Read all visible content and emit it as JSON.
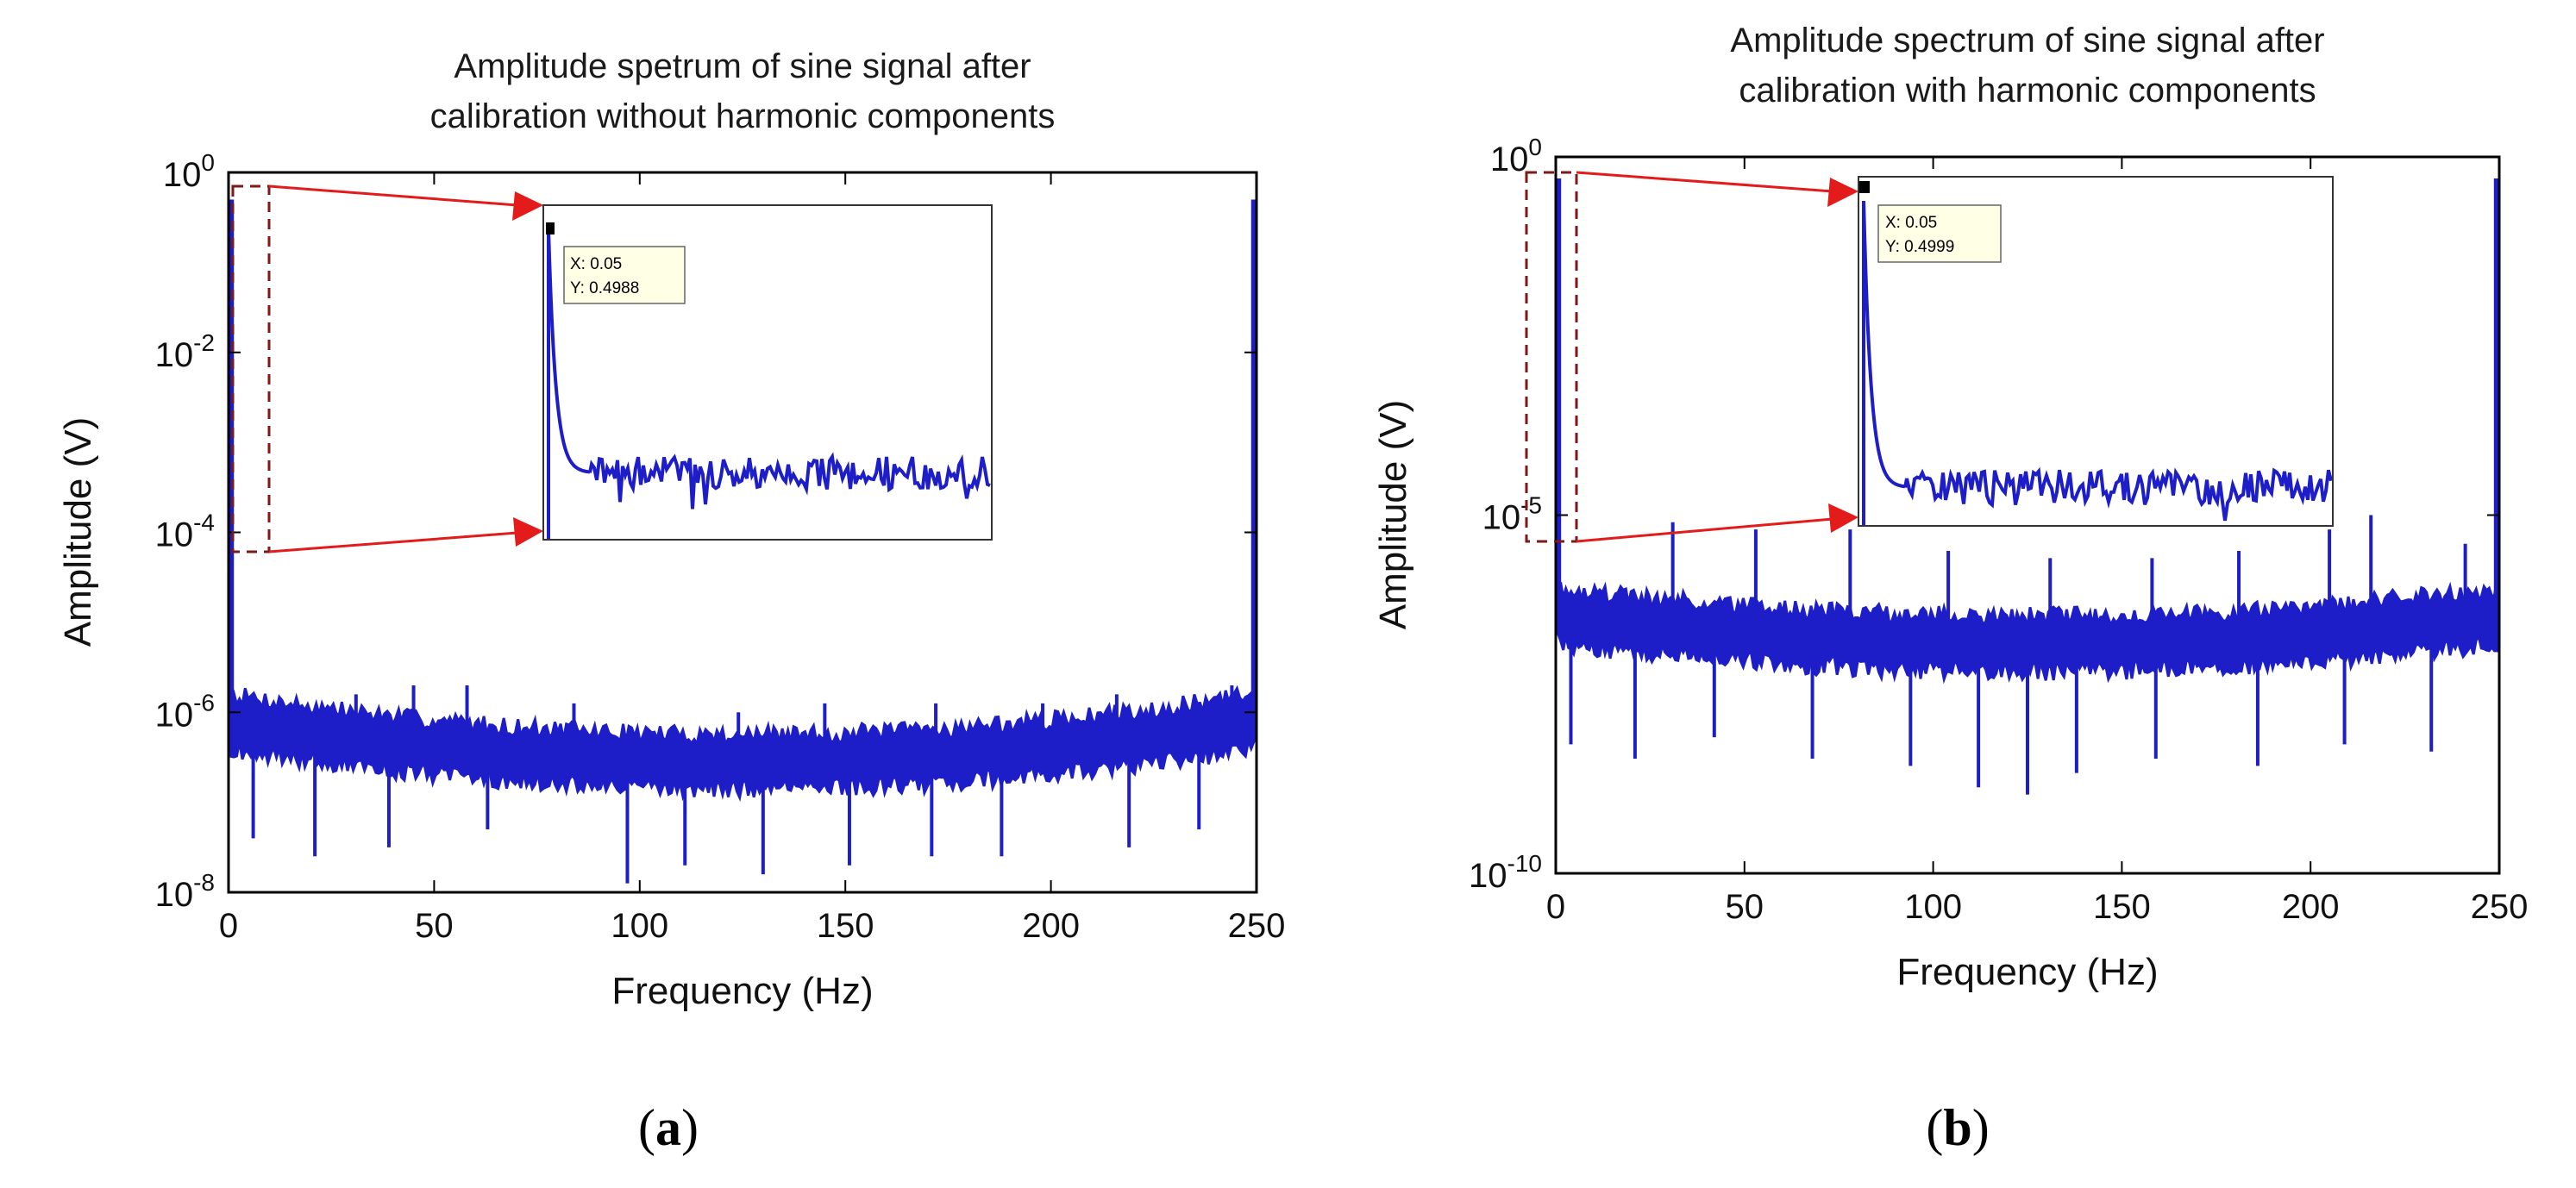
{
  "chart_data": [
    {
      "type": "line",
      "caption": "(a)",
      "caption_bold": "a",
      "title_lines": [
        "Amplitude spetrum of sine signal after",
        "calibration without harmonic components"
      ],
      "xlabel": "Frequency (Hz)",
      "ylabel": "Amplitude (V)",
      "x_scale": "linear",
      "y_scale": "log",
      "xlim": [
        0,
        250
      ],
      "ylim_exp": [
        -8,
        0
      ],
      "xticks": [
        0,
        50,
        100,
        150,
        200,
        250
      ],
      "xtick_labels": [
        "0",
        "50",
        "100",
        "150",
        "200",
        "250"
      ],
      "ytick_exps": [
        -8,
        -6,
        -4,
        -2,
        0
      ],
      "ytick_labels": [
        {
          "base": "10",
          "exp": "-8"
        },
        {
          "base": "10",
          "exp": "-6"
        },
        {
          "base": "10",
          "exp": "-4"
        },
        {
          "base": "10",
          "exp": "-2"
        },
        {
          "base": "10",
          "exp": "0"
        }
      ],
      "series": [
        {
          "name": "amplitude spectrum",
          "color": "#1e1ec8",
          "peaks": [
            {
              "x": 0.05,
              "y": 0.4988
            },
            {
              "x": 249.95,
              "y": 0.4988
            }
          ],
          "noise_floor_exp": {
            "left": -6.1,
            "middle": -6.55,
            "right": -6.1
          },
          "noise_band_exp_half_width": 0.35,
          "spike_up_exp": [
            [
              31,
              -5.8
            ],
            [
              45,
              -5.7
            ],
            [
              58,
              -5.7
            ],
            [
              84,
              -5.9
            ],
            [
              124,
              -6.0
            ],
            [
              145,
              -5.9
            ],
            [
              172,
              -5.9
            ],
            [
              198,
              -5.9
            ],
            [
              216,
              -5.8
            ],
            [
              244,
              -5.7
            ]
          ],
          "spike_down_exp": [
            [
              6,
              -7.4
            ],
            [
              21,
              -7.6
            ],
            [
              39,
              -7.5
            ],
            [
              63,
              -7.3
            ],
            [
              97,
              -7.9
            ],
            [
              111,
              -7.7
            ],
            [
              130,
              -7.8
            ],
            [
              151,
              -7.7
            ],
            [
              171,
              -7.6
            ],
            [
              188,
              -7.6
            ],
            [
              219,
              -7.5
            ],
            [
              236,
              -7.3
            ]
          ]
        }
      ],
      "inset": {
        "xlim_exp_source": "zoom of 0–10 Hz region",
        "zoom_region": {
          "x": [
            0,
            10
          ],
          "y_exp": [
            -4.2,
            0
          ]
        },
        "datatip": {
          "x_label": "X: 0.05",
          "y_label": "Y: 0.4988"
        },
        "peak_marker_color": "#000000",
        "arrow_color": "#e31b1b",
        "box_color": "#7a1a1a"
      }
    },
    {
      "type": "line",
      "caption": "(b)",
      "caption_bold": "b",
      "title_lines": [
        "Amplitude spectrum of sine signal after",
        "calibration with harmonic components"
      ],
      "xlabel": "Frequency (Hz)",
      "ylabel": "Amplitude (V)",
      "x_scale": "linear",
      "y_scale": "log",
      "xlim": [
        0,
        250
      ],
      "ylim_exp": [
        -10,
        0
      ],
      "xticks": [
        0,
        50,
        100,
        150,
        200,
        250
      ],
      "xtick_labels": [
        "0",
        "50",
        "100",
        "150",
        "200",
        "250"
      ],
      "ytick_exps": [
        -10,
        -5,
        0
      ],
      "ytick_labels": [
        {
          "base": "10",
          "exp": "-10"
        },
        {
          "base": "10",
          "exp": "-5"
        },
        {
          "base": "10",
          "exp": "0"
        }
      ],
      "series": [
        {
          "name": "amplitude spectrum",
          "color": "#1e1ec8",
          "peaks": [
            {
              "x": 0.05,
              "y": 0.4999
            },
            {
              "x": 249.95,
              "y": 0.4999
            }
          ],
          "noise_floor_exp": {
            "left": -6.4,
            "middle": -6.8,
            "right": -6.4
          },
          "noise_band_exp_half_width": 0.45,
          "spike_up_exp": [
            [
              31,
              -5.1
            ],
            [
              53,
              -5.2
            ],
            [
              78,
              -5.2
            ],
            [
              104,
              -5.5
            ],
            [
              131,
              -5.6
            ],
            [
              158,
              -5.6
            ],
            [
              181,
              -5.5
            ],
            [
              205,
              -5.2
            ],
            [
              216,
              -5.0
            ],
            [
              241,
              -5.4
            ]
          ],
          "spike_down_exp": [
            [
              4,
              -8.2
            ],
            [
              21,
              -8.4
            ],
            [
              42,
              -8.1
            ],
            [
              68,
              -8.4
            ],
            [
              94,
              -8.5
            ],
            [
              112,
              -8.8
            ],
            [
              125,
              -8.9
            ],
            [
              138,
              -8.6
            ],
            [
              159,
              -8.4
            ],
            [
              186,
              -8.5
            ],
            [
              209,
              -8.2
            ],
            [
              232,
              -8.3
            ]
          ]
        }
      ],
      "inset": {
        "zoom_region": {
          "x": [
            0,
            5
          ],
          "y_exp": [
            -5.5,
            0
          ]
        },
        "datatip": {
          "x_label": "X: 0.05",
          "y_label": "Y: 0.4999"
        },
        "peak_marker_color": "#000000",
        "arrow_color": "#e31b1b",
        "box_color": "#7a1a1a"
      }
    }
  ]
}
